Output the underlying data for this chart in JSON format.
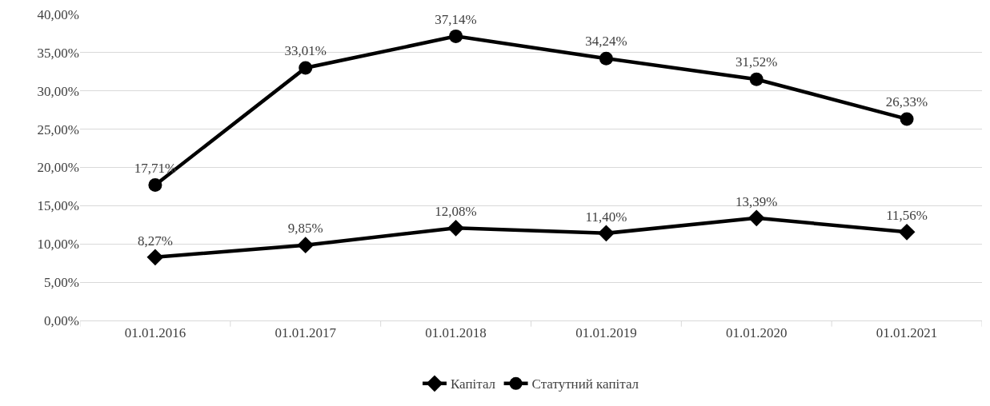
{
  "chart_data": {
    "type": "line",
    "categories": [
      "01.01.2016",
      "01.01.2017",
      "01.01.2018",
      "01.01.2019",
      "01.01.2020",
      "01.01.2021"
    ],
    "series": [
      {
        "name": "Капітал",
        "color": "#000000",
        "marker": "diamond",
        "values": [
          8.27,
          9.85,
          12.08,
          11.4,
          13.39,
          11.56
        ],
        "value_labels": [
          "8,27%",
          "9,85%",
          "12,08%",
          "11,40%",
          "13,39%",
          "11,56%"
        ]
      },
      {
        "name": "Статутний капітал",
        "color": "#000000",
        "marker": "circle",
        "values": [
          17.71,
          33.01,
          37.14,
          34.24,
          31.52,
          26.33
        ],
        "value_labels": [
          "17,71%",
          "33,01%",
          "37,14%",
          "34,24%",
          "31,52%",
          "26,33%"
        ]
      }
    ],
    "ylim": [
      0,
      40
    ],
    "yticks": [
      {
        "value": 0,
        "label": "0,00%"
      },
      {
        "value": 5,
        "label": "5,00%"
      },
      {
        "value": 10,
        "label": "10,00%"
      },
      {
        "value": 15,
        "label": "15,00%"
      },
      {
        "value": 20,
        "label": "20,00%"
      },
      {
        "value": 25,
        "label": "25,00%"
      },
      {
        "value": 30,
        "label": "30,00%"
      },
      {
        "value": 35,
        "label": "35,00%"
      },
      {
        "value": 40,
        "label": "40,00%"
      }
    ],
    "grid": "y",
    "legend": "bottom",
    "line_style": "solid"
  }
}
